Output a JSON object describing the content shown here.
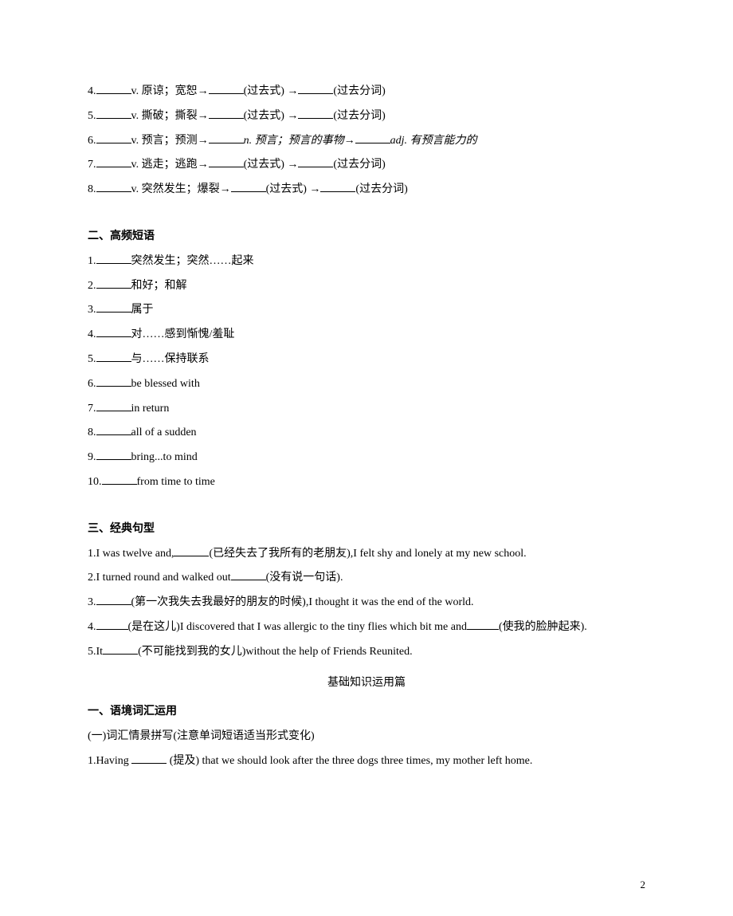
{
  "top_items": [
    {
      "num": "4.",
      "parts": [
        "v. 原谅；宽恕→",
        "(过去式) →",
        "(过去分词)"
      ]
    },
    {
      "num": "5.",
      "parts": [
        "v. 撕破；撕裂→",
        "(过去式) →",
        "(过去分词)"
      ]
    },
    {
      "num": "6.",
      "parts": [
        "v. 预言；预测→",
        "n. 预言；预言的事物→",
        "adj. 有预言能力的"
      ],
      "italic_middle": true
    },
    {
      "num": "7.",
      "parts": [
        "v. 逃走；逃跑→",
        "(过去式) →",
        "(过去分词)"
      ]
    },
    {
      "num": "8.",
      "parts": [
        "v. 突然发生；爆裂→",
        "(过去式) →",
        "(过去分词)"
      ]
    }
  ],
  "section2_title": "二、高频短语",
  "section2_items": [
    "突然发生；突然……起来",
    "和好；和解",
    "属于",
    "对……感到惭愧/羞耻",
    "与……保持联系",
    "be blessed with",
    "in return",
    "all of a sudden",
    "bring...to mind",
    "from time to time"
  ],
  "section3_title": "三、经典句型",
  "section3_items": [
    {
      "pre": "1.I was twelve and,",
      "mid": "(已经失去了我所有的老朋友),I felt shy and lonely at my new school."
    },
    {
      "pre": "2.I turned round and walked out",
      "mid": "(没有说一句话)."
    },
    {
      "pre": "3.",
      "mid": "(第一次我失去我最好的朋友的时候),I thought it was the end of the world."
    },
    {
      "pre": "4.",
      "mid": "(是在这儿)I discovered that I was allergic to the tiny flies which bit me and",
      "tail": "(使我的脸肿起来)."
    },
    {
      "pre": "5.It",
      "mid": "(不可能找到我的女儿)without the help of Friends Reunited."
    }
  ],
  "sub_heading": "基础知识运用篇",
  "section4_title": "一、语境词汇运用",
  "section4_subtitle": "(一)词汇情景拼写(注意单词短语适当形式变化)",
  "section4_item1_pre": "1.Having ",
  "section4_item1_mid": " (提及) that we should look after the three dogs three times, my mother left home.",
  "page_number": "2"
}
